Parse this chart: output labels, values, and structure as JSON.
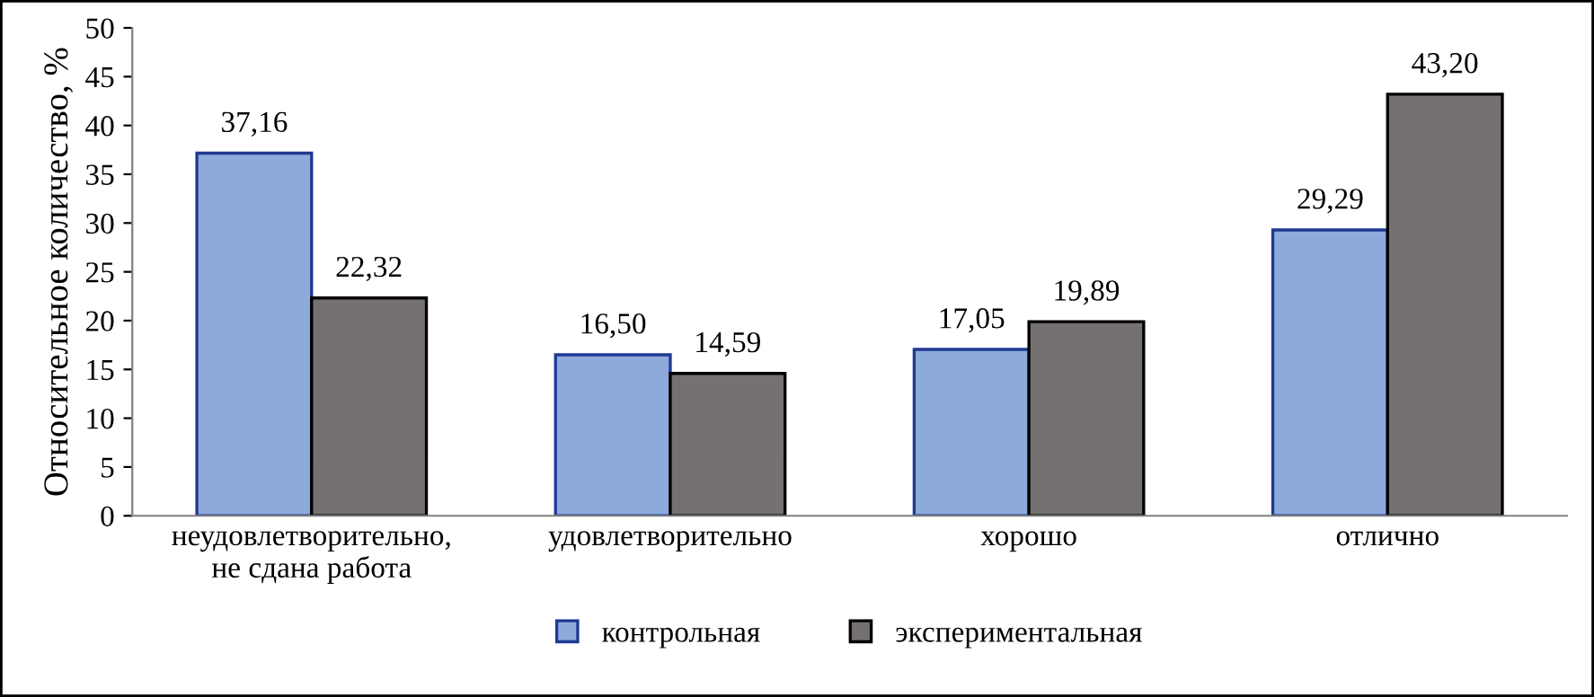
{
  "chart_data": {
    "type": "bar",
    "ylabel": "Относительное количество, %",
    "categories": [
      "неудовлетворительно,\nне сдана работа",
      "удовлетворительно",
      "хорошо",
      "отлично"
    ],
    "series": [
      {
        "name": "контрольная",
        "color": "#8eaadb",
        "values": [
          37.16,
          16.5,
          17.05,
          29.29
        ],
        "value_labels": [
          "37,16",
          "16,50",
          "17,05",
          "29,29"
        ]
      },
      {
        "name": "экспериментальная",
        "color": "#767171",
        "values": [
          22.32,
          14.59,
          19.89,
          43.2
        ],
        "value_labels": [
          "22,32",
          "14,59",
          "19,89",
          "43,20"
        ]
      }
    ],
    "ylim": [
      0,
      50
    ],
    "yticks": [
      0,
      5,
      10,
      15,
      20,
      25,
      30,
      35,
      40,
      45,
      50
    ],
    "grid": false,
    "legend": "bottom"
  }
}
